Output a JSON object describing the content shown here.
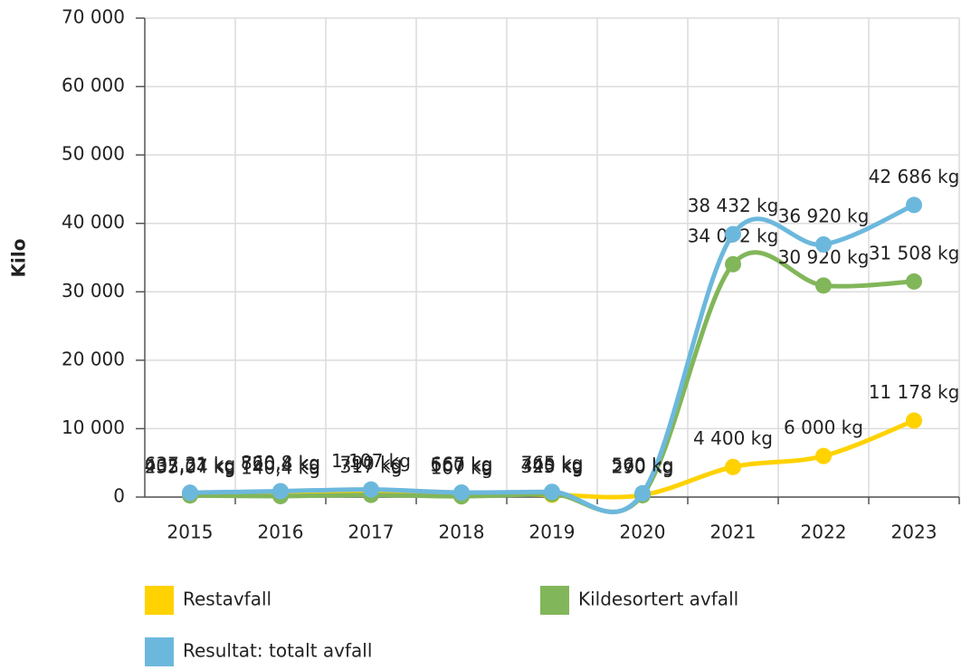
{
  "chart_data": {
    "type": "line",
    "y_label": "Kilo",
    "categories": [
      "2015",
      "2016",
      "2017",
      "2018",
      "2019",
      "2020",
      "2021",
      "2022",
      "2023"
    ],
    "series": [
      {
        "name": "Restavfall",
        "color": "#ffd200",
        "values": [
          402.27,
          720.4,
          790,
          560,
          325,
          290,
          4400,
          6000,
          11178
        ],
        "value_labels": [
          "402,27 kg",
          "720,4 kg",
          "790 kg",
          "560 kg",
          "325 kg",
          "290 kg",
          "4 400 kg",
          "6 000 kg",
          "11 178 kg"
        ]
      },
      {
        "name": "Kildesortert avfall",
        "color": "#82b65a",
        "values": [
          235.04,
          140.4,
          317,
          107,
          440,
          270,
          34032,
          30920,
          31508
        ],
        "value_labels": [
          "235,04 kg",
          "140,4 kg",
          "317 kg",
          "107 kg",
          "440 kg",
          "270 kg",
          "34 032 kg",
          "30 920 kg",
          "31 508 kg"
        ]
      },
      {
        "name": "Resultat: totalt avfall",
        "color": "#6cb8dd",
        "values": [
          637.31,
          860.8,
          1107,
          667,
          765,
          560,
          38432,
          36920,
          42686
        ],
        "value_labels": [
          "637,31 kg",
          "860,8 kg",
          "1 107 kg",
          "667 kg",
          "765 kg",
          "560 kg",
          "38 432 kg",
          "36 920 kg",
          "42 686 kg"
        ]
      }
    ],
    "ylim": [
      0,
      70000
    ],
    "yticks": [
      0,
      {
        "value": 10000,
        "label": "10 000"
      },
      {
        "value": 20000,
        "label": "20 000"
      },
      {
        "value": 30000,
        "label": "30 000"
      },
      {
        "value": 40000,
        "label": "40 000"
      },
      {
        "value": 50000,
        "label": "50 000"
      },
      {
        "value": 60000,
        "label": "60 000"
      },
      {
        "value": 70000,
        "label": "70 000"
      }
    ],
    "grid": true,
    "legend": "bottom"
  }
}
